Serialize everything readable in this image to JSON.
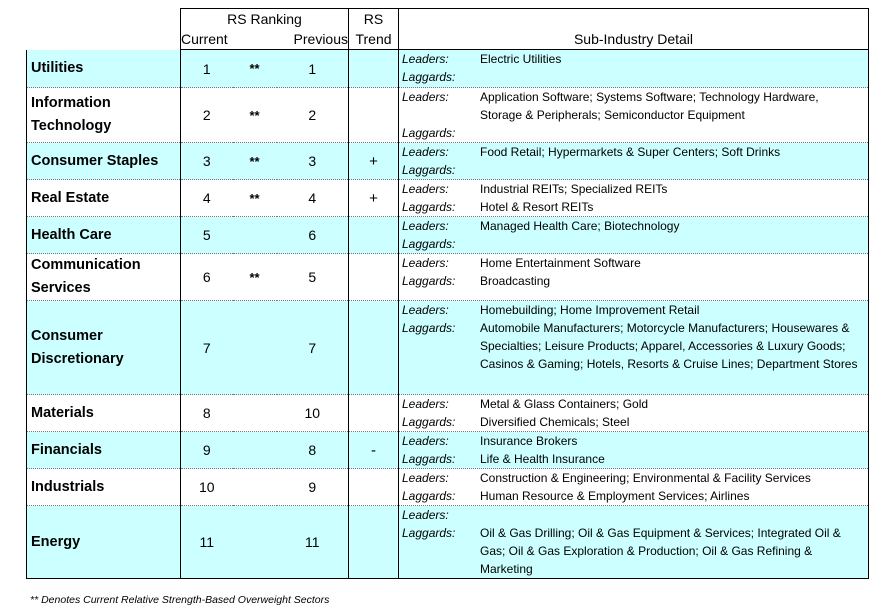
{
  "header": {
    "rs_ranking": "RS Ranking",
    "rs": "RS",
    "current": "Current",
    "previous": "Previous",
    "trend": "Trend",
    "sub_industry": "Sub-Industry Detail"
  },
  "labels": {
    "leaders": "Leaders:",
    "laggards": "Laggards:"
  },
  "colors": {
    "highlight": "#ccffff",
    "border": "#000000"
  },
  "rows": [
    {
      "sector": "Utilities",
      "current": "1",
      "stars": "**",
      "previous": "1",
      "trend": "",
      "leaders": "Electric Utilities",
      "laggards": ""
    },
    {
      "sector": "Information Technology",
      "current": "2",
      "stars": "**",
      "previous": "2",
      "trend": "",
      "leaders": "Application Software; Systems Software; Technology Hardware, Storage & Peripherals; Semiconductor Equipment",
      "laggards": ""
    },
    {
      "sector": "Consumer Staples",
      "current": "3",
      "stars": "**",
      "previous": "3",
      "trend": "+",
      "leaders": "Food Retail; Hypermarkets & Super Centers; Soft Drinks",
      "laggards": ""
    },
    {
      "sector": "Real Estate",
      "current": "4",
      "stars": "**",
      "previous": "4",
      "trend": "+",
      "leaders": "Industrial REITs; Specialized REITs",
      "laggards": "Hotel & Resort REITs"
    },
    {
      "sector": "Health Care",
      "current": "5",
      "stars": "",
      "previous": "6",
      "trend": "",
      "leaders": "Managed Health Care; Biotechnology",
      "laggards": ""
    },
    {
      "sector": "Communication Services",
      "current": "6",
      "stars": "**",
      "previous": "5",
      "trend": "",
      "leaders": "Home Entertainment Software",
      "laggards": "Broadcasting"
    },
    {
      "sector": "Consumer Discretionary",
      "current": "7",
      "stars": "",
      "previous": "7",
      "trend": "",
      "leaders": "Homebuilding; Home Improvement Retail",
      "laggards": "Automobile Manufacturers; Motorcycle Manufacturers; Housewares & Specialties; Leisure Products; Apparel, Accessories & Luxury Goods; Casinos & Gaming; Hotels, Resorts & Cruise Lines; Department Stores"
    },
    {
      "sector": "Materials",
      "current": "8",
      "stars": "",
      "previous": "10",
      "trend": "",
      "leaders": "Metal & Glass Containers; Gold",
      "laggards": "Diversified Chemicals; Steel"
    },
    {
      "sector": "Financials",
      "current": "9",
      "stars": "",
      "previous": "8",
      "trend": "-",
      "leaders": "Insurance Brokers",
      "laggards": "Life & Health Insurance"
    },
    {
      "sector": "Industrials",
      "current": "10",
      "stars": "",
      "previous": "9",
      "trend": "",
      "leaders": "Construction & Engineering; Environmental & Facility Services",
      "laggards": "Human Resource & Employment Services; Airlines"
    },
    {
      "sector": "Energy",
      "current": "11",
      "stars": "",
      "previous": "11",
      "trend": "",
      "leaders": "",
      "laggards": "Oil & Gas Drilling; Oil & Gas Equipment & Services; Integrated Oil & Gas; Oil & Gas Exploration & Production; Oil & Gas Refining & Marketing"
    }
  ],
  "footnote": "** Denotes Current Relative Strength-Based Overweight Sectors"
}
